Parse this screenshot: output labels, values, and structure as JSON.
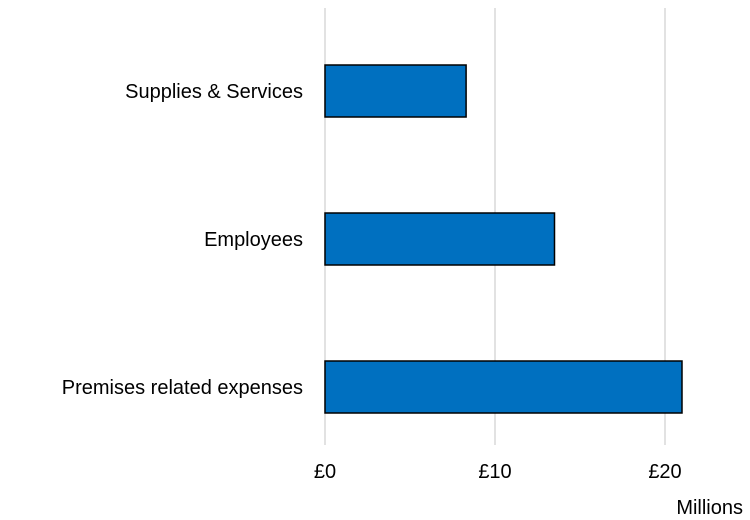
{
  "chart_data": {
    "type": "bar",
    "orientation": "horizontal",
    "categories": [
      "Supplies & Services",
      "Employees",
      "Premises related expenses"
    ],
    "values": [
      8.3,
      13.5,
      21.0
    ],
    "x_tick_values": [
      0,
      10,
      20
    ],
    "x_tick_labels": [
      "£0",
      "£10",
      "£20"
    ],
    "x_unit_label": "Millions",
    "xlim": [
      0,
      23.5
    ],
    "grid": "vertical",
    "legend": "none",
    "bar_color": "#0070C0",
    "bar_edge_color": "#000000",
    "grid_color": "#D9D9D9"
  }
}
